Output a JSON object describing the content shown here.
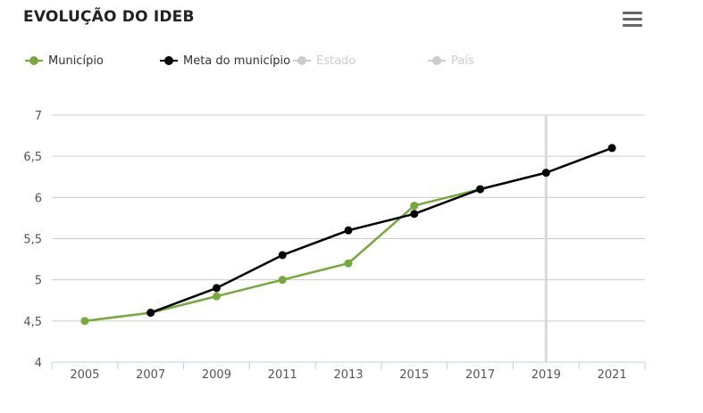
{
  "header": {
    "title": "EVOLUÇÃO DO IDEB",
    "menu_icon": "hamburger-menu-icon"
  },
  "colors": {
    "municipio": "#76a83a",
    "meta": "#000000",
    "inactive": "#cccccc",
    "grid": "#cccccc",
    "highlight_band": "#d9d9d9"
  },
  "legend": [
    {
      "label": "Município",
      "color": "#76a83a",
      "active": true
    },
    {
      "label": "Meta do município",
      "color": "#000000",
      "active": true
    },
    {
      "label": "Estado",
      "color": "#cccccc",
      "active": false
    },
    {
      "label": "País",
      "color": "#cccccc",
      "active": false
    }
  ],
  "chart_data": {
    "type": "line",
    "title": "EVOLUÇÃO DO IDEB",
    "x": [
      "2005",
      "2007",
      "2009",
      "2011",
      "2013",
      "2015",
      "2017",
      "2019",
      "2021"
    ],
    "ylim": [
      4,
      7
    ],
    "yticks": [
      "4",
      "4,5",
      "5",
      "5,5",
      "6",
      "6,5",
      "7"
    ],
    "yticks_values": [
      4,
      4.5,
      5,
      5.5,
      6,
      6.5,
      7
    ],
    "grid": true,
    "highlight_category": "2019",
    "series": [
      {
        "name": "Município",
        "color": "#76a83a",
        "values": [
          4.5,
          4.6,
          4.8,
          5.0,
          5.2,
          5.9,
          6.1,
          null,
          null
        ]
      },
      {
        "name": "Meta do município",
        "color": "#000000",
        "values": [
          null,
          4.6,
          4.9,
          5.3,
          5.6,
          5.8,
          6.1,
          6.3,
          6.6
        ]
      }
    ]
  }
}
